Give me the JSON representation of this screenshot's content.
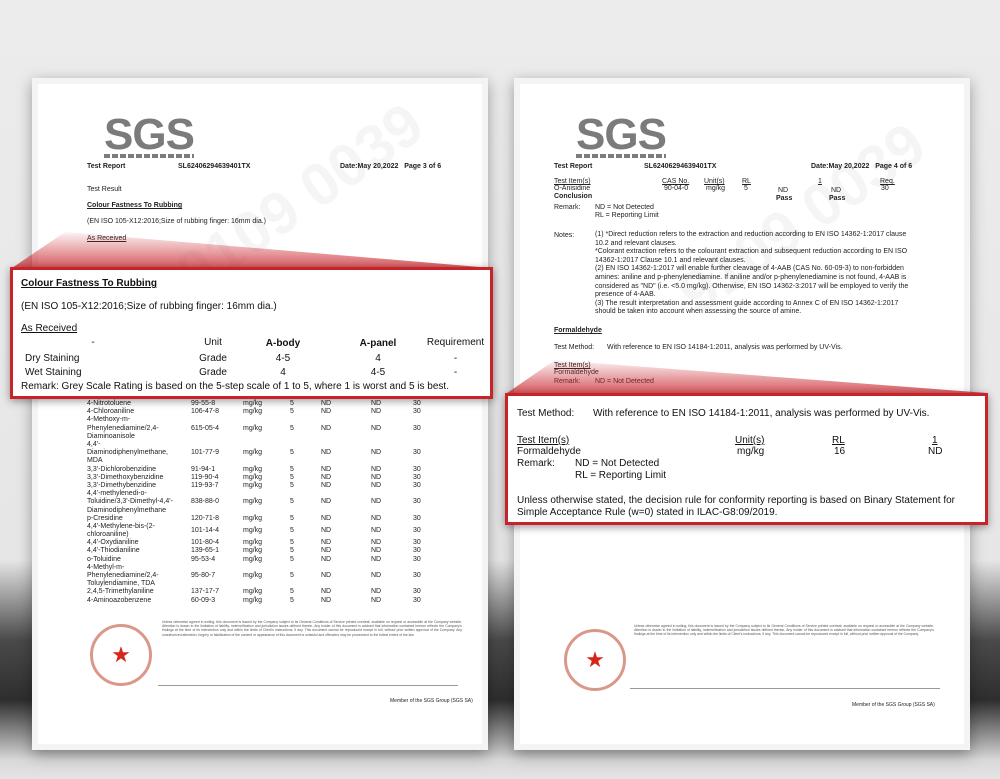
{
  "accent": "#c9232a",
  "logo": "SGS",
  "footer_member": "Member of the SGS Group (SGS SA)",
  "left": {
    "header": {
      "title": "Test Report",
      "report_no": "SL62406294639401TX",
      "date_page": "Date:May 20,2022   Page 3 of 6"
    },
    "test_result": "Test Result",
    "section": "Colour Fastness To Rubbing",
    "method": "(EN ISO 105-X12:2016;Size of rubbing finger: 16mm dia.)",
    "as_received": "As Received",
    "columns": [
      "-",
      "Unit",
      "A-body",
      "A-panel",
      "Requirement"
    ],
    "rows": [
      [
        "Dry Staining",
        "Grade",
        "4-5",
        "4",
        "-"
      ],
      [
        "Wet Staining",
        "Grade",
        "4",
        "4-5",
        "-"
      ]
    ],
    "remark": "Remark: Grey Scale Rating is based on the 5-step scale of 1 to 5, where 1 is worst and 5 is best.",
    "amines": [
      [
        "4-Nitrotoluene",
        "99-55-8",
        "mg/kg",
        "5",
        "ND",
        "ND",
        "30"
      ],
      [
        "4-Chloroaniline",
        "106-47-8",
        "mg/kg",
        "5",
        "ND",
        "ND",
        "30"
      ],
      [
        "4-Methoxy-m-\nPhenylenediamine/2,4-\nDiaminoanisole",
        "615-05-4",
        "mg/kg",
        "5",
        "ND",
        "ND",
        "30"
      ],
      [
        "4,4'-\nDiaminodiphenylmethane,\nMDA",
        "101-77-9",
        "mg/kg",
        "5",
        "ND",
        "ND",
        "30"
      ],
      [
        "3,3'-Dichlorobenzidine",
        "91-94-1",
        "mg/kg",
        "5",
        "ND",
        "ND",
        "30"
      ],
      [
        "3,3'-Dimethoxybenzidine",
        "119-90-4",
        "mg/kg",
        "5",
        "ND",
        "ND",
        "30"
      ],
      [
        "3,3'-Dimethybenzidine",
        "119-93-7",
        "mg/kg",
        "5",
        "ND",
        "ND",
        "30"
      ],
      [
        "4,4'-methylenedi-o-\nToluidine/3,3'-Dimethyl-4,4'-\nDiaminodiphenylmethane",
        "838-88-0",
        "mg/kg",
        "5",
        "ND",
        "ND",
        "30"
      ],
      [
        "p-Cresidine",
        "120-71-8",
        "mg/kg",
        "5",
        "ND",
        "ND",
        "30"
      ],
      [
        "4,4'-Methylene-bis-(2-\nchloroaniline)",
        "101-14-4",
        "mg/kg",
        "5",
        "ND",
        "ND",
        "30"
      ],
      [
        "4,4'-Oxydianiline",
        "101-80-4",
        "mg/kg",
        "5",
        "ND",
        "ND",
        "30"
      ],
      [
        "4,4'-Thiodianiline",
        "139-65-1",
        "mg/kg",
        "5",
        "ND",
        "ND",
        "30"
      ],
      [
        "o-Toluidine",
        "95-53-4",
        "mg/kg",
        "5",
        "ND",
        "ND",
        "30"
      ],
      [
        "4-Methyl-m-\nPhenylenediamine/2,4-\nToluylendiamine, TDA",
        "95-80-7",
        "mg/kg",
        "5",
        "ND",
        "ND",
        "30"
      ],
      [
        "2,4,5-Trimethylaniline",
        "137-17-7",
        "mg/kg",
        "5",
        "ND",
        "ND",
        "30"
      ],
      [
        "4-Aminoazobenzene",
        "60-09-3",
        "mg/kg",
        "5",
        "ND",
        "ND",
        "30"
      ]
    ]
  },
  "right": {
    "header": {
      "title": "Test Report",
      "report_no": "SL62406294639401TX",
      "date_page": "Date:May 20,2022   Page 4 of 6"
    },
    "table_head": [
      "Test Item(s)",
      "CAS No.",
      "Unit(s)",
      "RL",
      "1",
      "Req."
    ],
    "table_row": [
      "O-Anisidine",
      "90-04-0",
      "mg/kg",
      "5",
      "ND",
      "ND",
      "30"
    ],
    "conclusion": {
      "label": "Conclusion",
      "v1": "Pass",
      "v2": "Pass"
    },
    "remark_label": "Remark:",
    "remark_nd": "ND = Not Detected",
    "remark_rl": "RL = Reporting Limit",
    "notes_label": "Notes:",
    "notes": "(1) *Direct reduction refers to the extraction and reduction according to EN ISO 14362-1:2017 clause 10.2 and relevant clauses.\n*Colorant extraction refers to the colourant extraction and subsequent reduction according to EN ISO 14362-1:2017 Clause 10.1 and relevant clauses.\n(2) EN ISO 14362-1:2017 will enable further cleavage of 4-AAB (CAS No. 60-09-3) to non-forbidden amines: aniline and p-phenylenediamine. If aniline and/or p-phenylenediamine is not found, 4-AAB is considered as \"ND\" (i.e. <5.0 mg/kg). Otherwise, EN ISO 14362-3:2017 will be employed to verify the presence of 4-AAB.\n(3) The result interpretation and assessment guide according to Annex C of EN ISO 14362-1:2017 should be taken into account when assessing the source of amine.",
    "section": "Formaldehyde",
    "method_label": "Test Method:",
    "method": "With reference to EN ISO 14184-1:2011, analysis was performed by UV-Vis.",
    "f_head": [
      "Test Item(s)",
      "Unit(s)",
      "RL",
      "1"
    ],
    "f_row": [
      "Formaldehyde",
      "mg/kg",
      "16",
      "ND"
    ],
    "decision": "Unless otherwise stated, the decision rule for conformity reporting is based on Binary Statement for Simple Acceptance Rule (w=0) stated in ILAC-G8:09/2019."
  }
}
